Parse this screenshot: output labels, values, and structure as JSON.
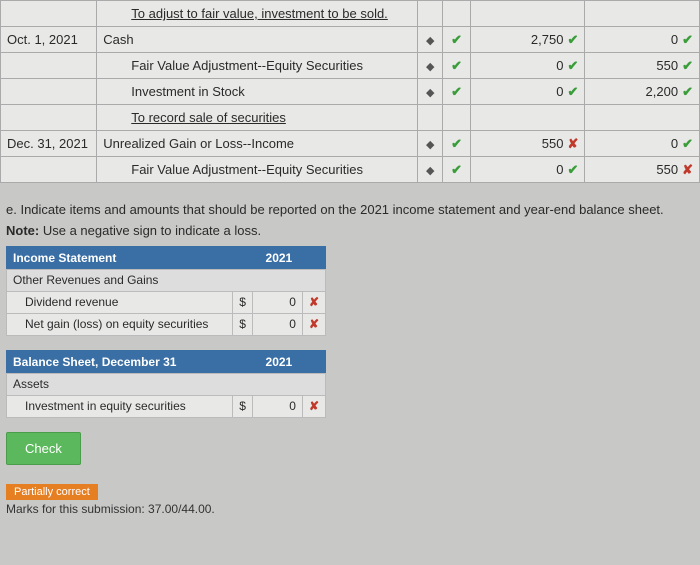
{
  "journal": {
    "rows": [
      {
        "date": "",
        "account": "To adjust to fair value, investment to be sold.",
        "underline": true,
        "indent": 1,
        "sel": false,
        "debit": "",
        "debit_status": "",
        "credit": "",
        "credit_status": ""
      },
      {
        "date": "Oct. 1, 2021",
        "account": "Cash",
        "underline": false,
        "indent": 0,
        "sel": true,
        "debit": "2,750",
        "debit_status": "check",
        "credit": "0",
        "credit_status": "check"
      },
      {
        "date": "",
        "account": "Fair Value Adjustment--Equity Securities",
        "underline": false,
        "indent": 1,
        "sel": true,
        "debit": "0",
        "debit_status": "check",
        "credit": "550",
        "credit_status": "check"
      },
      {
        "date": "",
        "account": "Investment in Stock",
        "underline": false,
        "indent": 1,
        "sel": true,
        "debit": "0",
        "debit_status": "check",
        "credit": "2,200",
        "credit_status": "check"
      },
      {
        "date": "",
        "account": "To record sale of securities",
        "underline": true,
        "indent": 1,
        "sel": false,
        "debit": "",
        "debit_status": "",
        "credit": "",
        "credit_status": ""
      },
      {
        "date": "Dec. 31, 2021",
        "account": "Unrealized Gain or Loss--Income",
        "underline": false,
        "indent": 0,
        "sel": true,
        "debit": "550",
        "debit_status": "cross",
        "credit": "0",
        "credit_status": "check"
      },
      {
        "date": "",
        "account": "Fair Value Adjustment--Equity Securities",
        "underline": false,
        "indent": 1,
        "sel": true,
        "debit": "0",
        "debit_status": "check",
        "credit": "550",
        "credit_status": "cross"
      }
    ]
  },
  "part_e": {
    "text": "e. Indicate items and amounts that should be reported on the 2021 income statement and year-end balance sheet.",
    "note_label": "Note:",
    "note_text": "Use a negative sign to indicate a loss."
  },
  "income_stmt": {
    "title": "Income Statement",
    "year": "2021",
    "subhead": "Other Revenues and Gains",
    "rows": [
      {
        "label": "Dividend revenue",
        "sym": "$",
        "val": "0",
        "status": "cross"
      },
      {
        "label": "Net gain (loss) on equity securities",
        "sym": "$",
        "val": "0",
        "status": "cross"
      }
    ]
  },
  "balance_sheet": {
    "title": "Balance Sheet, December 31",
    "year": "2021",
    "subhead": "Assets",
    "rows": [
      {
        "label": "Investment in equity securities",
        "sym": "$",
        "val": "0",
        "status": "cross"
      }
    ]
  },
  "check_button": "Check",
  "partial_label": "Partially correct",
  "marks_text": "Marks for this submission: 37.00/44.00.",
  "icons": {
    "selector": "◆",
    "check": "✔",
    "cross": "✘"
  },
  "colors": {
    "header_blue": "#3a6fa5",
    "check_green": "#3a9d3a",
    "cross_red": "#c0392b",
    "btn_green": "#5cb85c",
    "partial_orange": "#e67e22",
    "page_bg": "#c8c8c6"
  }
}
